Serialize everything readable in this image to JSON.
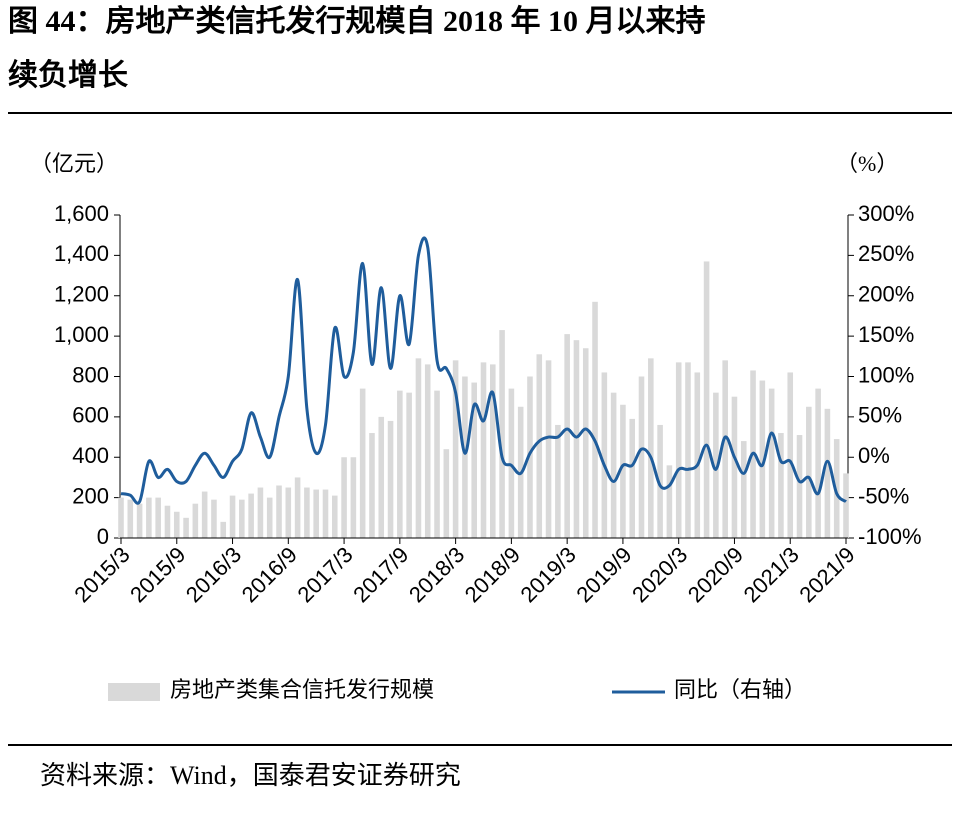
{
  "chart_data": {
    "type": "bar-line",
    "title": "图 44：房地产类信托发行规模自 2018 年 10 月以来持续负增长",
    "y_unit": "（亿元）",
    "y2_unit": "（%）",
    "categories": [
      "2015/3",
      null,
      null,
      null,
      null,
      null,
      "2015/9",
      null,
      null,
      null,
      null,
      null,
      "2016/3",
      null,
      null,
      null,
      null,
      null,
      "2016/9",
      null,
      null,
      null,
      null,
      null,
      "2017/3",
      null,
      null,
      null,
      null,
      null,
      "2017/9",
      null,
      null,
      null,
      null,
      null,
      "2018/3",
      null,
      null,
      null,
      null,
      null,
      "2018/9",
      null,
      null,
      null,
      null,
      null,
      "2019/3",
      null,
      null,
      null,
      null,
      null,
      "2019/9",
      null,
      null,
      null,
      null,
      null,
      "2020/3",
      null,
      null,
      null,
      null,
      null,
      "2020/9",
      null,
      null,
      null,
      null,
      null,
      "2021/3",
      null,
      null,
      null,
      null,
      null,
      "2021/9"
    ],
    "series": [
      {
        "name": "房地产类集合信托发行规模",
        "type": "bar",
        "color": "#d9d9d9",
        "values": [
          200,
          190,
          170,
          200,
          200,
          160,
          130,
          100,
          170,
          230,
          190,
          80,
          210,
          190,
          220,
          250,
          200,
          260,
          250,
          300,
          250,
          240,
          240,
          210,
          400,
          400,
          740,
          520,
          600,
          580,
          730,
          720,
          890,
          860,
          730,
          440,
          880,
          800,
          770,
          870,
          860,
          1030,
          740,
          650,
          800,
          910,
          880,
          560,
          1010,
          980,
          940,
          1170,
          820,
          720,
          660,
          590,
          800,
          890,
          560,
          360,
          870,
          870,
          820,
          1370,
          720,
          880,
          700,
          480,
          830,
          780,
          740,
          520,
          820,
          510,
          650,
          740,
          640,
          490,
          320
        ]
      },
      {
        "name": "同比（右轴）",
        "type": "line",
        "axis": "y2",
        "color": "#1f5d9c",
        "values": [
          -45,
          -47,
          -55,
          -5,
          -25,
          -15,
          -30,
          -30,
          -10,
          5,
          -10,
          -25,
          -5,
          10,
          55,
          25,
          0,
          50,
          100,
          220,
          60,
          5,
          40,
          160,
          100,
          130,
          240,
          115,
          210,
          110,
          200,
          140,
          250,
          260,
          120,
          110,
          80,
          5,
          65,
          45,
          80,
          0,
          -10,
          -20,
          5,
          20,
          25,
          25,
          35,
          25,
          35,
          20,
          -10,
          -30,
          -10,
          -10,
          10,
          0,
          -35,
          -35,
          -15,
          -15,
          -10,
          15,
          -15,
          25,
          0,
          -20,
          5,
          -10,
          30,
          -5,
          -5,
          -30,
          -25,
          -45,
          -5,
          -45,
          -55
        ]
      }
    ],
    "ylim": [
      0,
      1600
    ],
    "yticks": [
      0,
      200,
      400,
      600,
      800,
      {
        "value": 1000,
        "label": "1,000"
      },
      {
        "value": 1200,
        "label": "1,200"
      },
      {
        "value": 1400,
        "label": "1,400"
      },
      {
        "value": 1600,
        "label": "1,600"
      }
    ],
    "y2lim": [
      -100,
      300
    ],
    "y2ticks": [
      {
        "value": -100,
        "label": "-100%"
      },
      {
        "value": -50,
        "label": "-50%"
      },
      {
        "value": 0,
        "label": "0%"
      },
      {
        "value": 50,
        "label": "50%"
      },
      {
        "value": 100,
        "label": "100%"
      },
      {
        "value": 150,
        "label": "150%"
      },
      {
        "value": 200,
        "label": "200%"
      },
      {
        "value": 250,
        "label": "250%"
      },
      {
        "value": 300,
        "label": "300%"
      }
    ]
  },
  "source": "资料来源：Wind，国泰君安证券研究"
}
